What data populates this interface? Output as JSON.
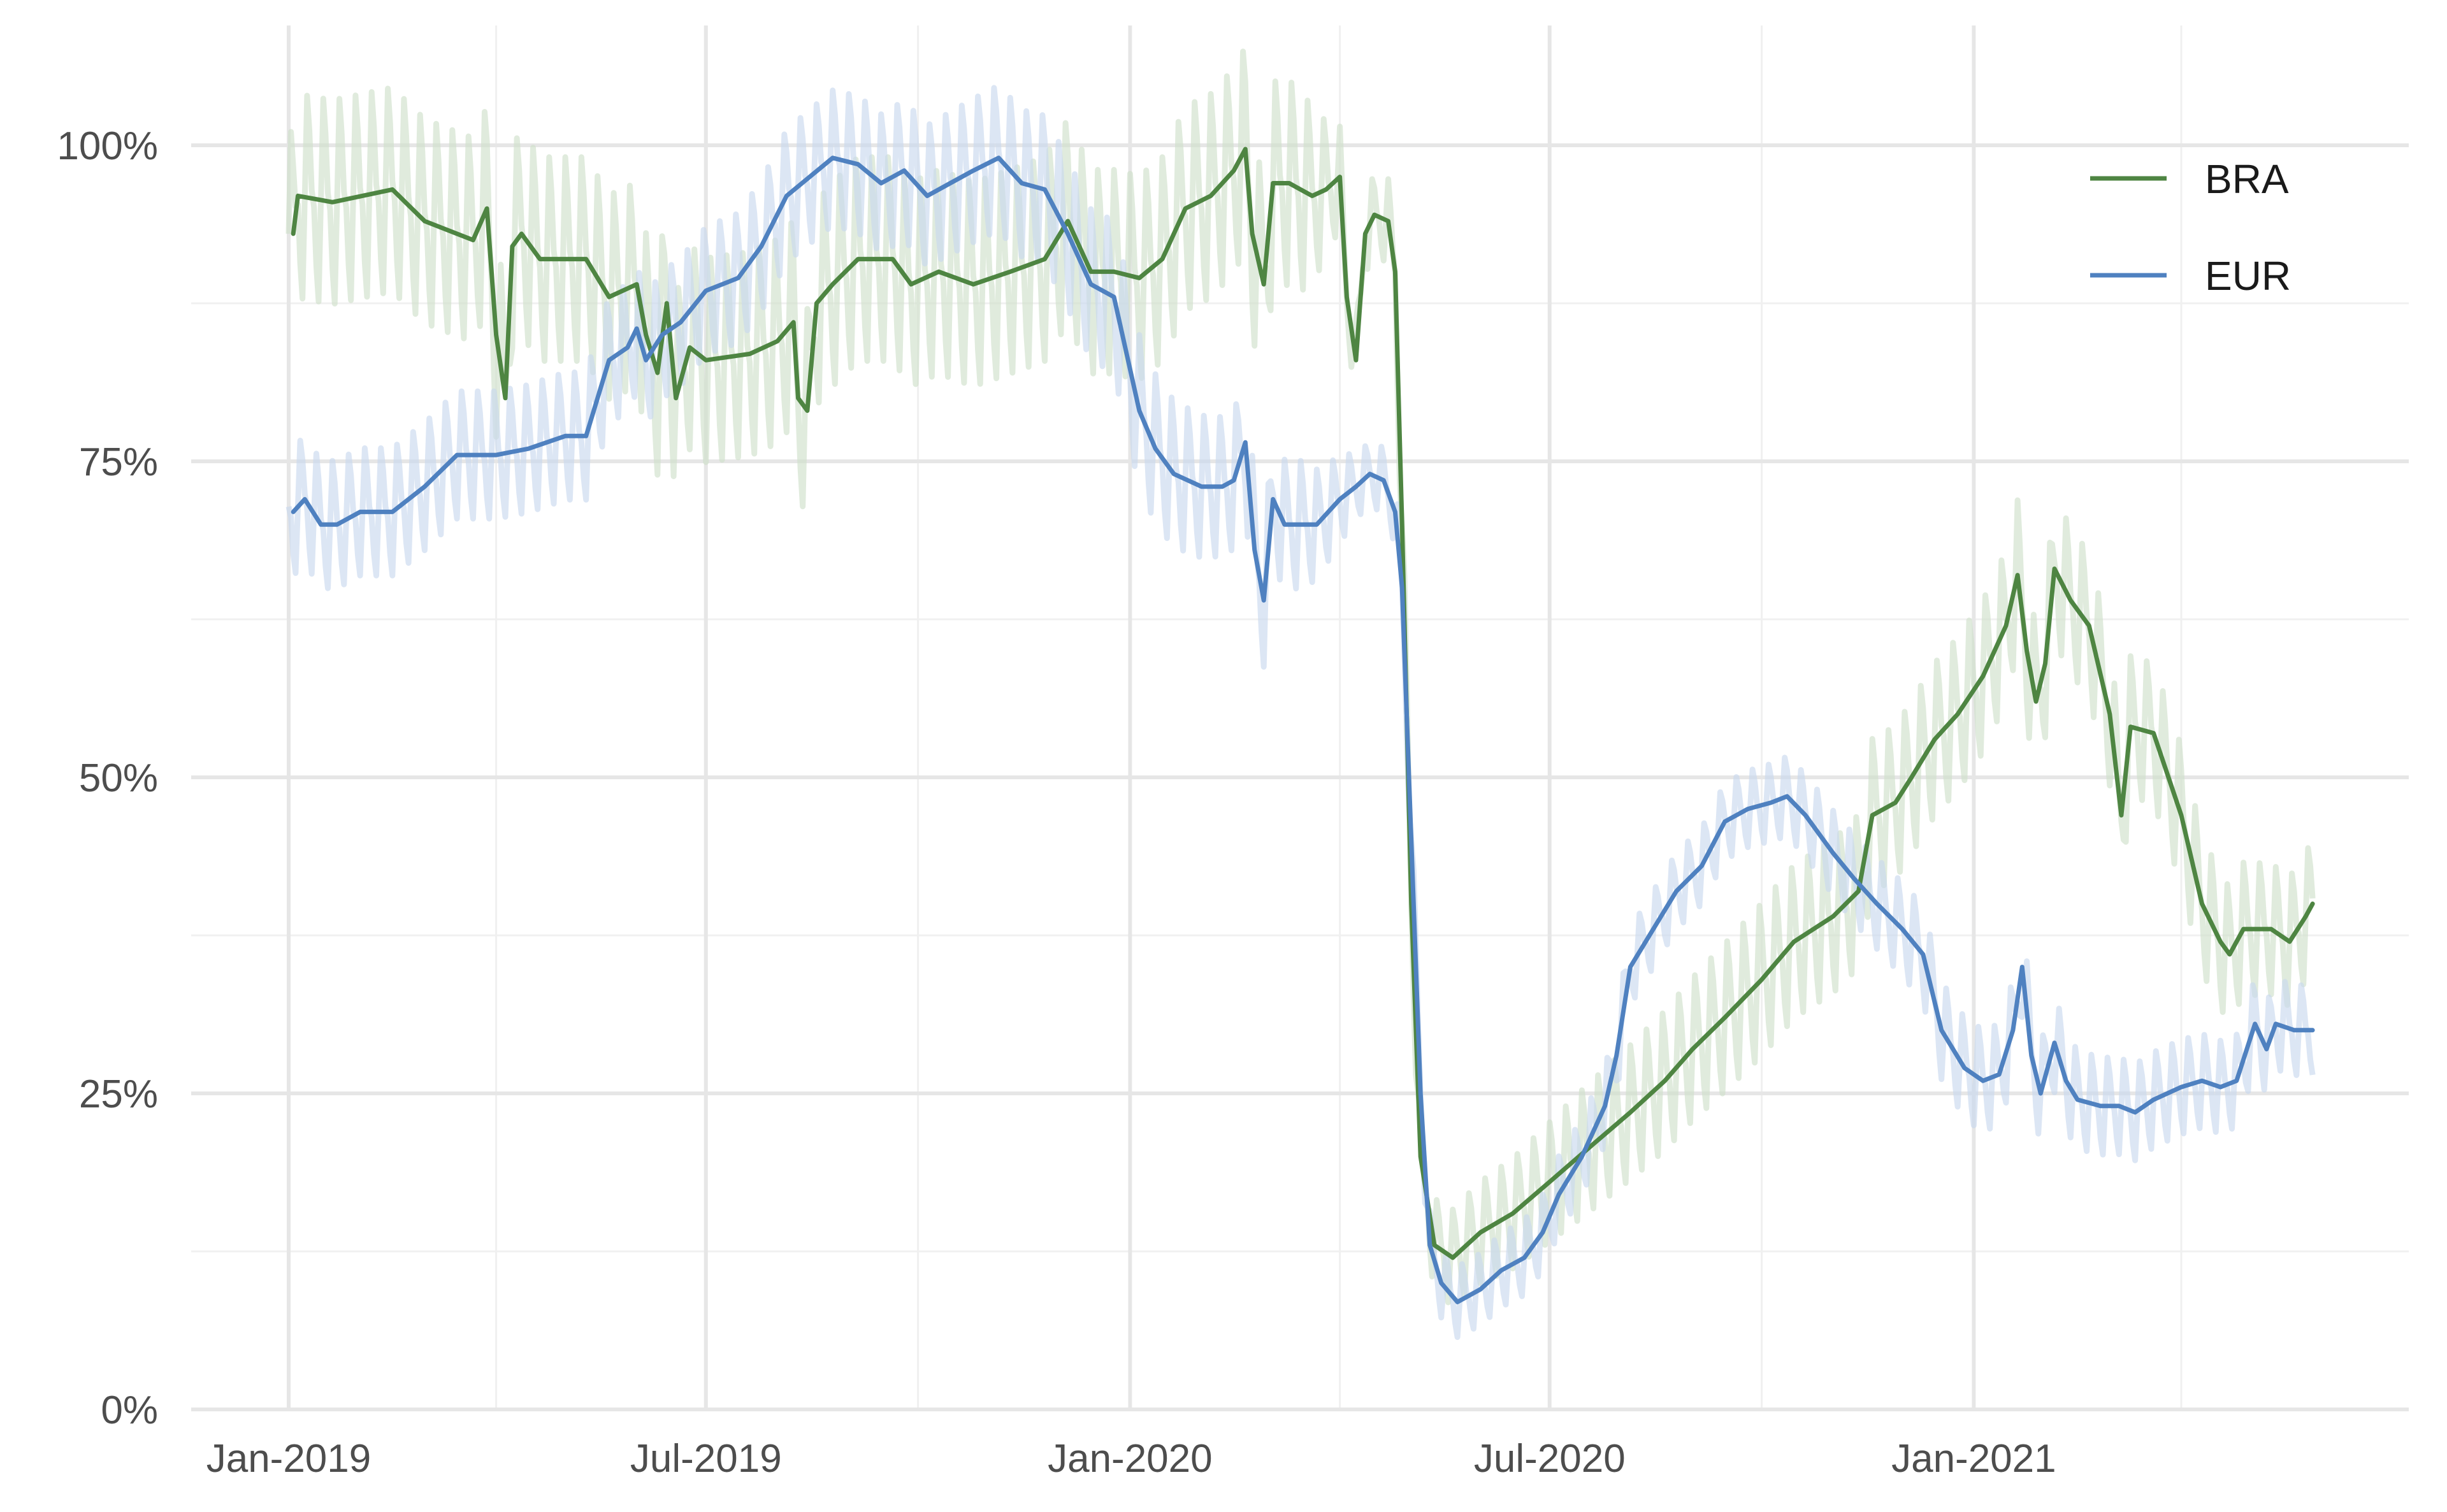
{
  "chart_data": {
    "type": "line",
    "title": "",
    "xlabel": "",
    "ylabel": "",
    "x_range": [
      "2019-01-01",
      "2021-05-31"
    ],
    "ylim": [
      0,
      1.07
    ],
    "y_ticks": [
      {
        "value": 0,
        "label": "0%"
      },
      {
        "value": 0.25,
        "label": "25%"
      },
      {
        "value": 0.5,
        "label": "50%"
      },
      {
        "value": 0.75,
        "label": "75%"
      },
      {
        "value": 1.0,
        "label": "100%"
      }
    ],
    "x_ticks": [
      {
        "date": "2019-01-01",
        "label": "Jan-2019"
      },
      {
        "date": "2019-07-01",
        "label": "Jul-2019"
      },
      {
        "date": "2020-01-01",
        "label": "Jan-2020"
      },
      {
        "date": "2020-07-01",
        "label": "Jul-2020"
      },
      {
        "date": "2021-01-01",
        "label": "Jan-2021"
      }
    ],
    "x_minor_ticks": [
      "2019-04-01",
      "2019-10-01",
      "2020-04-01",
      "2020-10-01",
      "2021-04-01"
    ],
    "grid": true,
    "legend": {
      "position": "top-right"
    },
    "series": [
      {
        "name": "BRA",
        "color": "#4e8542",
        "band_color": "#cfe0cb",
        "band_halfwidth": [
          [
            "2019-01-01",
            0.08
          ],
          [
            "2020-03-15",
            0.08
          ],
          [
            "2020-04-05",
            0.03
          ],
          [
            "2020-06-01",
            0.04
          ],
          [
            "2020-07-15",
            0.05
          ],
          [
            "2020-10-01",
            0.06
          ],
          [
            "2021-01-01",
            0.06
          ],
          [
            "2021-05-31",
            0.05
          ]
        ],
        "points": [
          [
            "2019-01-03",
            0.93
          ],
          [
            "2019-01-05",
            0.96
          ],
          [
            "2019-01-20",
            0.955
          ],
          [
            "2019-02-15",
            0.965
          ],
          [
            "2019-03-01",
            0.94
          ],
          [
            "2019-03-15",
            0.93
          ],
          [
            "2019-03-22",
            0.925
          ],
          [
            "2019-03-28",
            0.95
          ],
          [
            "2019-04-01",
            0.85
          ],
          [
            "2019-04-05",
            0.8
          ],
          [
            "2019-04-08",
            0.92
          ],
          [
            "2019-04-12",
            0.93
          ],
          [
            "2019-04-20",
            0.91
          ],
          [
            "2019-05-10",
            0.91
          ],
          [
            "2019-05-20",
            0.88
          ],
          [
            "2019-06-01",
            0.89
          ],
          [
            "2019-06-05",
            0.85
          ],
          [
            "2019-06-10",
            0.82
          ],
          [
            "2019-06-14",
            0.875
          ],
          [
            "2019-06-18",
            0.8
          ],
          [
            "2019-06-24",
            0.84
          ],
          [
            "2019-07-01",
            0.83
          ],
          [
            "2019-07-20",
            0.835
          ],
          [
            "2019-08-01",
            0.845
          ],
          [
            "2019-08-08",
            0.86
          ],
          [
            "2019-08-10",
            0.8
          ],
          [
            "2019-08-14",
            0.79
          ],
          [
            "2019-08-18",
            0.875
          ],
          [
            "2019-08-25",
            0.89
          ],
          [
            "2019-09-05",
            0.91
          ],
          [
            "2019-09-20",
            0.91
          ],
          [
            "2019-09-28",
            0.89
          ],
          [
            "2019-10-10",
            0.9
          ],
          [
            "2019-10-25",
            0.89
          ],
          [
            "2019-11-10",
            0.9
          ],
          [
            "2019-11-25",
            0.91
          ],
          [
            "2019-12-05",
            0.94
          ],
          [
            "2019-12-15",
            0.9
          ],
          [
            "2019-12-25",
            0.9
          ],
          [
            "2020-01-05",
            0.895
          ],
          [
            "2020-01-15",
            0.91
          ],
          [
            "2020-01-25",
            0.95
          ],
          [
            "2020-02-05",
            0.96
          ],
          [
            "2020-02-15",
            0.98
          ],
          [
            "2020-02-20",
            0.997
          ],
          [
            "2020-02-23",
            0.93
          ],
          [
            "2020-02-28",
            0.89
          ],
          [
            "2020-03-03",
            0.97
          ],
          [
            "2020-03-10",
            0.97
          ],
          [
            "2020-03-20",
            0.96
          ],
          [
            "2020-03-26",
            0.965
          ],
          [
            "2020-04-01",
            0.975
          ],
          [
            "2020-04-04",
            0.88
          ],
          [
            "2020-04-08",
            0.83
          ],
          [
            "2020-04-12",
            0.93
          ],
          [
            "2020-04-16",
            0.945
          ],
          [
            "2020-04-22",
            0.94
          ],
          [
            "2020-04-25",
            0.9
          ],
          [
            "2020-04-28",
            0.7
          ],
          [
            "2020-05-02",
            0.4
          ],
          [
            "2020-05-06",
            0.2
          ],
          [
            "2020-05-12",
            0.13
          ],
          [
            "2020-05-20",
            0.12
          ],
          [
            "2020-06-01",
            0.14
          ],
          [
            "2020-06-15",
            0.155
          ],
          [
            "2020-07-01",
            0.18
          ],
          [
            "2020-07-20",
            0.21
          ],
          [
            "2020-08-05",
            0.235
          ],
          [
            "2020-08-20",
            0.26
          ],
          [
            "2020-09-01",
            0.285
          ],
          [
            "2020-09-15",
            0.31
          ],
          [
            "2020-10-01",
            0.34
          ],
          [
            "2020-10-15",
            0.37
          ],
          [
            "2020-11-01",
            0.39
          ],
          [
            "2020-11-12",
            0.41
          ],
          [
            "2020-11-18",
            0.47
          ],
          [
            "2020-11-28",
            0.48
          ],
          [
            "2020-12-05",
            0.5
          ],
          [
            "2020-12-15",
            0.53
          ],
          [
            "2020-12-25",
            0.55
          ],
          [
            "2021-01-05",
            0.58
          ],
          [
            "2021-01-15",
            0.62
          ],
          [
            "2021-01-20",
            0.66
          ],
          [
            "2021-01-24",
            0.6
          ],
          [
            "2021-01-28",
            0.56
          ],
          [
            "2021-02-01",
            0.59
          ],
          [
            "2021-02-05",
            0.665
          ],
          [
            "2021-02-12",
            0.64
          ],
          [
            "2021-02-20",
            0.62
          ],
          [
            "2021-03-01",
            0.55
          ],
          [
            "2021-03-06",
            0.47
          ],
          [
            "2021-03-10",
            0.54
          ],
          [
            "2021-03-20",
            0.535
          ],
          [
            "2021-04-01",
            0.47
          ],
          [
            "2021-04-10",
            0.4
          ],
          [
            "2021-04-18",
            0.37
          ],
          [
            "2021-04-22",
            0.36
          ],
          [
            "2021-04-28",
            0.38
          ],
          [
            "2021-05-10",
            0.38
          ],
          [
            "2021-05-18",
            0.37
          ],
          [
            "2021-05-25",
            0.39
          ],
          [
            "2021-05-28",
            0.4
          ]
        ]
      },
      {
        "name": "EUR",
        "color": "#4f81c0",
        "band_color": "#c9d9ee",
        "band_halfwidth": [
          [
            "2019-01-01",
            0.05
          ],
          [
            "2019-07-01",
            0.05
          ],
          [
            "2020-01-01",
            0.06
          ],
          [
            "2020-03-15",
            0.05
          ],
          [
            "2020-04-10",
            0.025
          ],
          [
            "2020-07-01",
            0.03
          ],
          [
            "2020-10-01",
            0.03
          ],
          [
            "2021-01-01",
            0.04
          ],
          [
            "2021-05-31",
            0.035
          ]
        ],
        "points": [
          [
            "2019-01-03",
            0.71
          ],
          [
            "2019-01-08",
            0.72
          ],
          [
            "2019-01-15",
            0.7
          ],
          [
            "2019-01-22",
            0.7
          ],
          [
            "2019-02-01",
            0.71
          ],
          [
            "2019-02-15",
            0.71
          ],
          [
            "2019-03-01",
            0.73
          ],
          [
            "2019-03-15",
            0.755
          ],
          [
            "2019-04-01",
            0.755
          ],
          [
            "2019-04-15",
            0.76
          ],
          [
            "2019-05-01",
            0.77
          ],
          [
            "2019-05-10",
            0.77
          ],
          [
            "2019-05-20",
            0.83
          ],
          [
            "2019-05-28",
            0.84
          ],
          [
            "2019-06-01",
            0.855
          ],
          [
            "2019-06-05",
            0.83
          ],
          [
            "2019-06-12",
            0.85
          ],
          [
            "2019-06-20",
            0.86
          ],
          [
            "2019-07-01",
            0.885
          ],
          [
            "2019-07-15",
            0.895
          ],
          [
            "2019-07-25",
            0.92
          ],
          [
            "2019-08-05",
            0.96
          ],
          [
            "2019-08-15",
            0.975
          ],
          [
            "2019-08-25",
            0.99
          ],
          [
            "2019-09-05",
            0.985
          ],
          [
            "2019-09-15",
            0.97
          ],
          [
            "2019-09-25",
            0.98
          ],
          [
            "2019-10-05",
            0.96
          ],
          [
            "2019-10-15",
            0.97
          ],
          [
            "2019-10-25",
            0.98
          ],
          [
            "2019-11-05",
            0.99
          ],
          [
            "2019-11-15",
            0.97
          ],
          [
            "2019-11-25",
            0.965
          ],
          [
            "2019-12-05",
            0.93
          ],
          [
            "2019-12-15",
            0.89
          ],
          [
            "2019-12-25",
            0.88
          ],
          [
            "2020-01-05",
            0.79
          ],
          [
            "2020-01-12",
            0.76
          ],
          [
            "2020-01-20",
            0.74
          ],
          [
            "2020-02-01",
            0.73
          ],
          [
            "2020-02-10",
            0.73
          ],
          [
            "2020-02-15",
            0.735
          ],
          [
            "2020-02-20",
            0.765
          ],
          [
            "2020-02-24",
            0.68
          ],
          [
            "2020-02-28",
            0.64
          ],
          [
            "2020-03-03",
            0.72
          ],
          [
            "2020-03-08",
            0.7
          ],
          [
            "2020-03-15",
            0.7
          ],
          [
            "2020-03-22",
            0.7
          ],
          [
            "2020-04-01",
            0.72
          ],
          [
            "2020-04-08",
            0.73
          ],
          [
            "2020-04-14",
            0.74
          ],
          [
            "2020-04-20",
            0.735
          ],
          [
            "2020-04-25",
            0.71
          ],
          [
            "2020-04-28",
            0.65
          ],
          [
            "2020-05-02",
            0.45
          ],
          [
            "2020-05-06",
            0.25
          ],
          [
            "2020-05-10",
            0.13
          ],
          [
            "2020-05-15",
            0.1
          ],
          [
            "2020-05-22",
            0.085
          ],
          [
            "2020-06-01",
            0.095
          ],
          [
            "2020-06-10",
            0.11
          ],
          [
            "2020-06-20",
            0.12
          ],
          [
            "2020-06-28",
            0.14
          ],
          [
            "2020-07-05",
            0.17
          ],
          [
            "2020-07-15",
            0.2
          ],
          [
            "2020-07-25",
            0.24
          ],
          [
            "2020-07-30",
            0.28
          ],
          [
            "2020-08-05",
            0.35
          ],
          [
            "2020-08-15",
            0.38
          ],
          [
            "2020-08-25",
            0.41
          ],
          [
            "2020-09-05",
            0.43
          ],
          [
            "2020-09-15",
            0.465
          ],
          [
            "2020-09-25",
            0.475
          ],
          [
            "2020-10-05",
            0.48
          ],
          [
            "2020-10-12",
            0.485
          ],
          [
            "2020-10-20",
            0.47
          ],
          [
            "2020-11-01",
            0.44
          ],
          [
            "2020-11-10",
            0.42
          ],
          [
            "2020-11-20",
            0.4
          ],
          [
            "2020-12-01",
            0.38
          ],
          [
            "2020-12-10",
            0.36
          ],
          [
            "2020-12-18",
            0.3
          ],
          [
            "2020-12-28",
            0.27
          ],
          [
            "2021-01-05",
            0.26
          ],
          [
            "2021-01-12",
            0.265
          ],
          [
            "2021-01-18",
            0.3
          ],
          [
            "2021-01-22",
            0.35
          ],
          [
            "2021-01-26",
            0.28
          ],
          [
            "2021-01-30",
            0.25
          ],
          [
            "2021-02-05",
            0.29
          ],
          [
            "2021-02-10",
            0.26
          ],
          [
            "2021-02-15",
            0.245
          ],
          [
            "2021-02-25",
            0.24
          ],
          [
            "2021-03-05",
            0.24
          ],
          [
            "2021-03-12",
            0.235
          ],
          [
            "2021-03-20",
            0.245
          ],
          [
            "2021-04-01",
            0.255
          ],
          [
            "2021-04-10",
            0.26
          ],
          [
            "2021-04-18",
            0.255
          ],
          [
            "2021-04-25",
            0.26
          ],
          [
            "2021-05-03",
            0.305
          ],
          [
            "2021-05-08",
            0.285
          ],
          [
            "2021-05-12",
            0.305
          ],
          [
            "2021-05-20",
            0.3
          ],
          [
            "2021-05-28",
            0.3
          ]
        ]
      }
    ]
  }
}
